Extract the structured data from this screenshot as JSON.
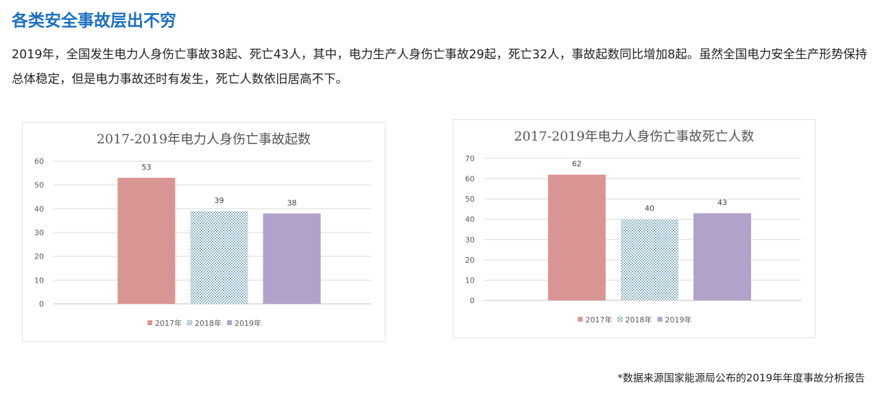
{
  "heading": "各类安全事故层出不穷",
  "intro": "2019年，全国发生电力人身伤亡事故38起、死亡43人，其中，电力生产人身伤亡事故29起，死亡32人，事故起数同比增加8起。虽然全国电力安全生产形势保持总体稳定，但是电力事故还时有发生，死亡人数依旧居高不下。",
  "source": "*数据来源国家能源局公布的2019年年度事故分析报告",
  "colors": {
    "heading": "#1a6fc4",
    "s2017": "#d99593",
    "s2018": "#8fb3c4",
    "s2019": "#b0a2c8"
  },
  "chart_data": [
    {
      "type": "bar",
      "title": "2017-2019年电力人身伤亡事故起数",
      "categories": [
        "2017年",
        "2018年",
        "2019年"
      ],
      "values": [
        53,
        39,
        38
      ],
      "ylim": [
        0,
        60
      ],
      "yticks": [
        "0",
        "10",
        "20",
        "30",
        "40",
        "50",
        "60"
      ],
      "grid": true,
      "legend": "bottom"
    },
    {
      "type": "bar",
      "title": "2017-2019年电力人身伤亡事故死亡人数",
      "categories": [
        "2017年",
        "2018年",
        "2019年"
      ],
      "values": [
        62,
        40,
        43
      ],
      "ylim": [
        0,
        70
      ],
      "yticks": [
        "0",
        "10",
        "20",
        "30",
        "40",
        "50",
        "60",
        "70"
      ],
      "grid": true,
      "legend": "bottom"
    }
  ]
}
